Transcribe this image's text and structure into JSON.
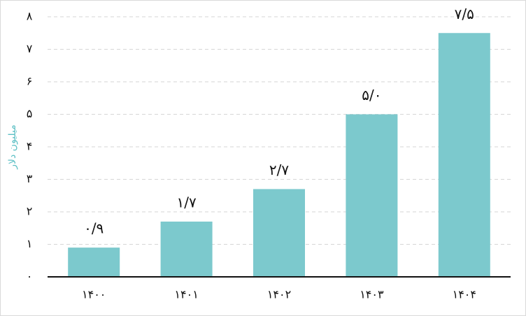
{
  "chart_data": {
    "type": "bar",
    "y_label": "میلیون دلار",
    "categories": [
      "۱۴۰۰",
      "۱۴۰۱",
      "۱۴۰۲",
      "۱۴۰۳",
      "۱۴۰۴"
    ],
    "values": [
      0.9,
      1.7,
      2.7,
      5.0,
      7.5
    ],
    "value_labels": [
      "۰/۹",
      "۱/۷",
      "۲/۷",
      "۵/۰",
      "۷/۵"
    ],
    "color": "#7cc9cd",
    "ylim": [
      0,
      8
    ],
    "yticks": [
      {
        "value": 0,
        "label": "۰"
      },
      {
        "value": 1,
        "label": "۱"
      },
      {
        "value": 2,
        "label": "۲"
      },
      {
        "value": 3,
        "label": "۳"
      },
      {
        "value": 4,
        "label": "۴"
      },
      {
        "value": 5,
        "label": "۵"
      },
      {
        "value": 6,
        "label": "۶"
      },
      {
        "value": 7,
        "label": "۷"
      },
      {
        "value": 8,
        "label": "۸"
      }
    ],
    "grid": true
  }
}
